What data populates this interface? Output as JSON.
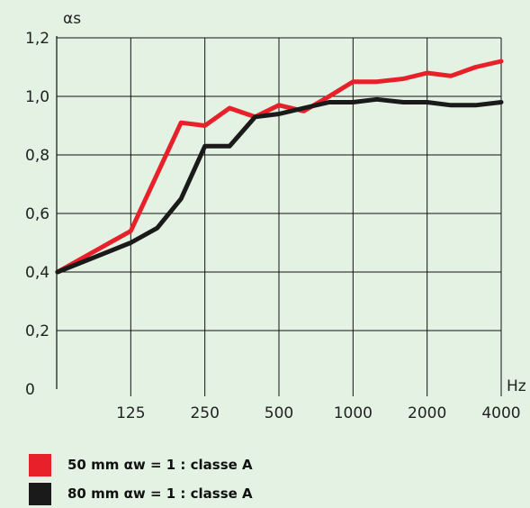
{
  "chart_data": {
    "type": "line",
    "y_axis_label": "αs",
    "x_axis_unit": "Hz",
    "y_ticks": [
      "0",
      "0,2",
      "0,4",
      "0,6",
      "0,8",
      "1,0",
      "1,2"
    ],
    "x_ticks": [
      "125",
      "250",
      "500",
      "1000",
      "2000",
      "4000"
    ],
    "x_tick_values": [
      125,
      250,
      500,
      1000,
      2000,
      4000
    ],
    "ylim": [
      0,
      1.2
    ],
    "xlim": [
      62.5,
      4000
    ],
    "x_scale": "log2",
    "grid": true,
    "series": [
      {
        "name": "50 mm αw = 1 : classe A",
        "color": "#e8202a",
        "x": [
          63,
          125,
          200,
          250,
          315,
          400,
          500,
          630,
          800,
          1000,
          1250,
          1600,
          2000,
          2500,
          3150,
          4000
        ],
        "y": [
          0.4,
          0.54,
          0.91,
          0.9,
          0.96,
          0.93,
          0.97,
          0.95,
          1.0,
          1.05,
          1.05,
          1.06,
          1.08,
          1.07,
          1.1,
          1.12
        ]
      },
      {
        "name": "80 mm αw = 1 : classe A",
        "color": "#1a1a1a",
        "x": [
          63,
          125,
          160,
          200,
          250,
          315,
          400,
          500,
          630,
          800,
          1000,
          1250,
          1600,
          2000,
          2500,
          3150,
          4000
        ],
        "y": [
          0.4,
          0.5,
          0.55,
          0.65,
          0.83,
          0.83,
          0.93,
          0.94,
          0.96,
          0.98,
          0.98,
          0.99,
          0.98,
          0.98,
          0.97,
          0.97,
          0.98
        ]
      }
    ]
  },
  "legend": [
    {
      "color": "#e8202a",
      "label": "50 mm αw = 1 : classe A"
    },
    {
      "color": "#1a1a1a",
      "label": "80 mm αw = 1 : classe A"
    }
  ]
}
